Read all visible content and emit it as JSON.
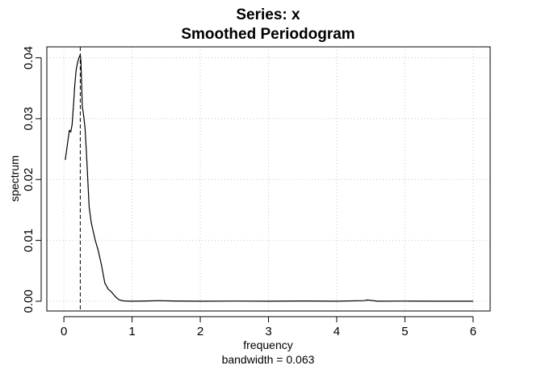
{
  "chart_data": {
    "type": "line",
    "title": "Series: x",
    "subtitle": "Smoothed Periodogram",
    "xlabel": "frequency",
    "ylabel": "spectrum",
    "sublabel": "bandwidth = 0.063",
    "xlim": [
      -0.25,
      6.25
    ],
    "ylim": [
      -0.0016,
      0.0418
    ],
    "x_ticks": [
      0,
      1,
      2,
      3,
      4,
      5,
      6
    ],
    "y_ticks": [
      0.0,
      0.01,
      0.02,
      0.03,
      0.04
    ],
    "x_tick_labels": [
      "0",
      "1",
      "2",
      "3",
      "4",
      "5",
      "6"
    ],
    "y_tick_labels": [
      "0.00",
      "0.01",
      "0.02",
      "0.03",
      "0.04"
    ],
    "grid": true,
    "vline_x": 0.24,
    "series": [
      {
        "x": [
          0.02,
          0.05,
          0.08,
          0.1,
          0.12,
          0.14,
          0.16,
          0.18,
          0.2,
          0.22,
          0.24,
          0.25,
          0.27,
          0.29,
          0.31,
          0.33,
          0.35,
          0.37,
          0.4,
          0.43,
          0.46,
          0.5,
          0.55,
          0.6,
          0.65,
          0.7,
          0.75,
          0.8,
          0.85,
          0.9,
          1.0,
          1.2,
          1.4,
          1.6,
          2.0,
          2.5,
          3.0,
          3.5,
          4.0,
          4.4,
          4.45,
          4.5,
          4.6,
          5.0,
          5.5,
          6.0
        ],
        "y": [
          0.0232,
          0.0256,
          0.0281,
          0.0278,
          0.029,
          0.032,
          0.0355,
          0.038,
          0.0392,
          0.04,
          0.0405,
          0.0395,
          0.032,
          0.0305,
          0.0285,
          0.0245,
          0.02,
          0.0155,
          0.013,
          0.0115,
          0.01,
          0.0085,
          0.006,
          0.003,
          0.002,
          0.0015,
          0.0008,
          0.0003,
          0.0001,
          5e-05,
          0.0,
          5e-05,
          0.0001,
          5e-05,
          0.0,
          3e-05,
          0.0,
          5e-05,
          0.0,
          0.0001,
          0.0002,
          0.00015,
          0.0,
          3e-05,
          0.0,
          0.0
        ]
      }
    ]
  }
}
